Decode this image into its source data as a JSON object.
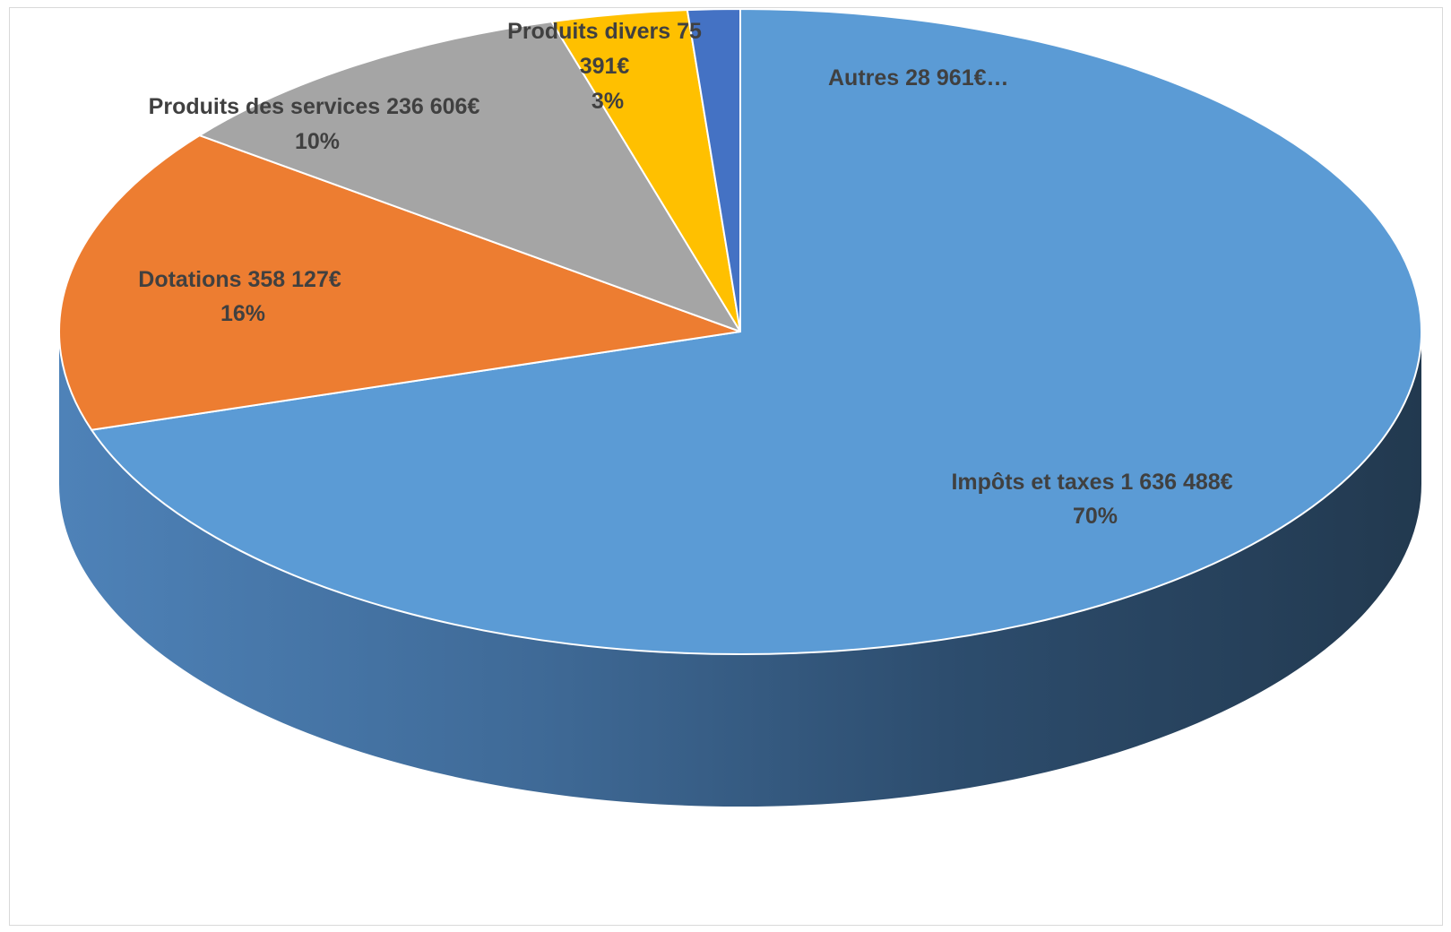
{
  "chart_data": {
    "type": "pie",
    "variant": "3d",
    "title": "",
    "slices": [
      {
        "name": "Impôts et taxes",
        "value": 1636488,
        "percent": "70%",
        "label_line1": "Impôts et taxes 1 636 488€",
        "label_line2": "70%",
        "color": "#5B9BD5",
        "side_color": "#4E7FB0"
      },
      {
        "name": "Dotations",
        "value": 358127,
        "percent": "16%",
        "label_line1": "Dotations 358 127€",
        "label_line2": "16%",
        "color": "#ED7D31",
        "side_color": "#C5661F"
      },
      {
        "name": "Produits des services",
        "value": 236606,
        "percent": "10%",
        "label_line1": "Produits des services 236 606€",
        "label_line2": "10%",
        "color": "#A5A5A5",
        "side_color": "#858585"
      },
      {
        "name": "Produits divers",
        "value": 75391,
        "percent": "3%",
        "label_line1": "Produits divers 75",
        "label_line2": "391€",
        "label_line3": "3%",
        "color": "#FFC000",
        "side_color": "#C99700"
      },
      {
        "name": "Autres",
        "value": 28961,
        "percent": "",
        "label_line1": "Autres 28 961€…",
        "color": "#4472C4",
        "side_color": "#365C9E"
      }
    ],
    "legend": "none",
    "data_labels": "outside-end"
  }
}
